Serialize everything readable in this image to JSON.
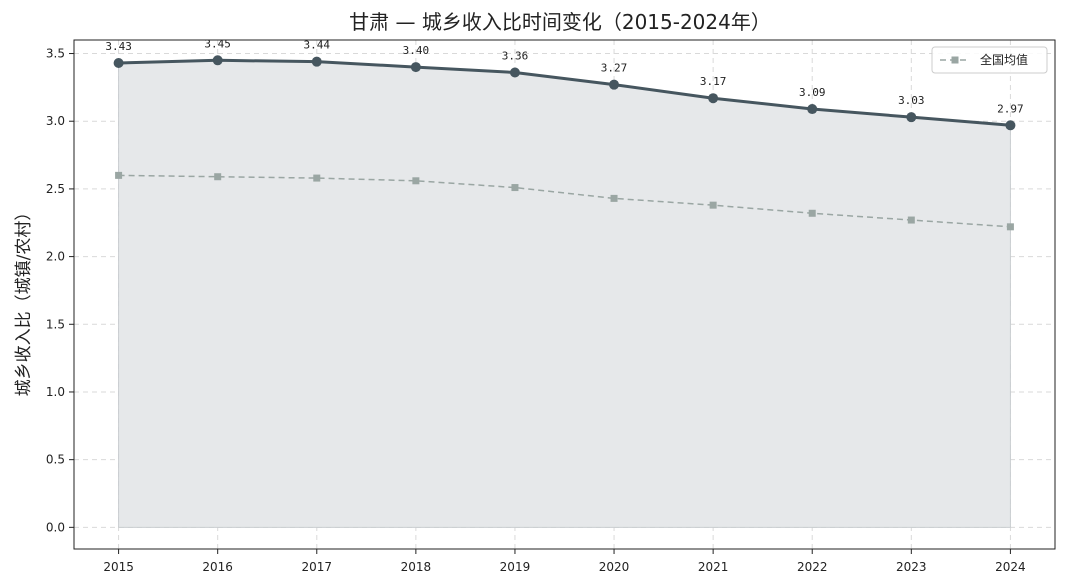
{
  "chart_data": {
    "type": "line",
    "title": "甘肃 — 城乡收入比时间变化（2015-2024年）",
    "xlabel": "",
    "ylabel": "城乡收入比（城镇/农村）",
    "x": [
      "2015",
      "2016",
      "2017",
      "2018",
      "2019",
      "2020",
      "2021",
      "2022",
      "2023",
      "2024"
    ],
    "xlim": [
      2014.55,
      2024.45
    ],
    "ylim": [
      -0.16,
      3.6
    ],
    "yticks": [
      "0.0",
      "0.5",
      "1.0",
      "1.5",
      "2.0",
      "2.5",
      "3.0",
      "3.5"
    ],
    "grid": true,
    "legend_position": "top-right",
    "series": [
      {
        "name": "",
        "values": [
          3.43,
          3.45,
          3.44,
          3.4,
          3.36,
          3.27,
          3.17,
          3.09,
          3.03,
          2.97
        ],
        "data_labels": [
          "3.43",
          "3.45",
          "3.44",
          "3.40",
          "3.36",
          "3.27",
          "3.17",
          "3.09",
          "3.03",
          "2.97"
        ],
        "color": "#46565f",
        "style": "solid",
        "marker": "circle",
        "area_fill": "#e6e8ea"
      },
      {
        "name": "全国均值",
        "values": [
          2.6,
          2.59,
          2.58,
          2.56,
          2.51,
          2.43,
          2.38,
          2.32,
          2.27,
          2.22
        ],
        "color": "#9aa6a3",
        "style": "dashed",
        "marker": "square"
      }
    ]
  }
}
